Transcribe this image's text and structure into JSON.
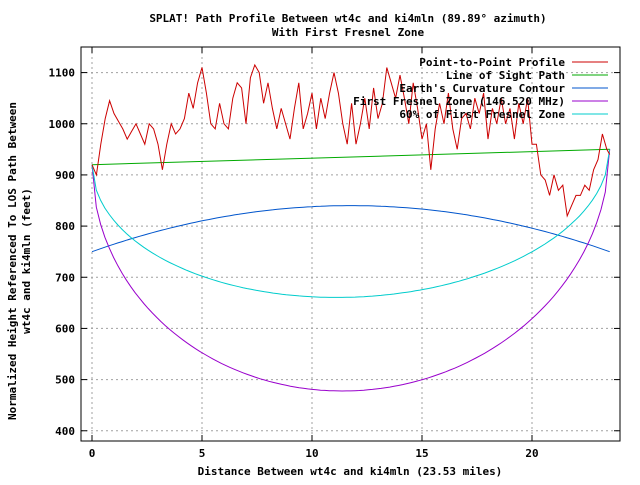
{
  "chart_data": {
    "type": "line",
    "title": "SPLAT! Path Profile Between wt4c and ki4mln (89.89° azimuth)",
    "subtitle": "With First Fresnel Zone",
    "xlabel": "Distance Between wt4c and ki4mln (23.53 miles)",
    "ylabel_line1": "Normalized Height Referenced To LOS Path Between",
    "ylabel_line2": "wt4c and ki4mln (feet)",
    "xlim": [
      -0.5,
      24.0
    ],
    "ylim": [
      380,
      1150
    ],
    "xticks": [
      0,
      5,
      10,
      15,
      20
    ],
    "yticks": [
      400,
      500,
      600,
      700,
      800,
      900,
      1000,
      1100
    ],
    "grid": true,
    "legend_position": "top-right",
    "colors": {
      "profile": "#cc0000",
      "los": "#00aa00",
      "earth": "#0055cc",
      "fresnel": "#9900cc",
      "fresnel60": "#00cccc"
    },
    "series": [
      {
        "key": "profile",
        "name": "Point-to-Point Profile",
        "x": [
          0,
          0.2,
          0.4,
          0.6,
          0.8,
          1.0,
          1.2,
          1.4,
          1.6,
          1.8,
          2.0,
          2.2,
          2.4,
          2.6,
          2.8,
          3.0,
          3.2,
          3.4,
          3.6,
          3.8,
          4.0,
          4.2,
          4.4,
          4.6,
          4.8,
          5.0,
          5.2,
          5.4,
          5.6,
          5.8,
          6.0,
          6.2,
          6.4,
          6.6,
          6.8,
          7.0,
          7.2,
          7.4,
          7.6,
          7.8,
          8.0,
          8.2,
          8.4,
          8.6,
          8.8,
          9.0,
          9.2,
          9.4,
          9.6,
          9.8,
          10.0,
          10.2,
          10.4,
          10.6,
          10.8,
          11.0,
          11.2,
          11.4,
          11.6,
          11.8,
          12.0,
          12.2,
          12.4,
          12.6,
          12.8,
          13.0,
          13.2,
          13.4,
          13.6,
          13.8,
          14.0,
          14.2,
          14.4,
          14.6,
          14.8,
          15.0,
          15.2,
          15.4,
          15.6,
          15.8,
          16.0,
          16.2,
          16.4,
          16.6,
          16.8,
          17.0,
          17.2,
          17.4,
          17.6,
          17.8,
          18.0,
          18.2,
          18.4,
          18.6,
          18.8,
          19.0,
          19.2,
          19.4,
          19.6,
          19.8,
          20.0,
          20.2,
          20.4,
          20.6,
          20.8,
          21.0,
          21.2,
          21.4,
          21.6,
          21.8,
          22.0,
          22.2,
          22.4,
          22.6,
          22.8,
          23.0,
          23.2,
          23.4,
          23.53
        ],
        "y": [
          920,
          900,
          960,
          1010,
          1045,
          1020,
          1005,
          990,
          970,
          985,
          1000,
          980,
          960,
          1000,
          990,
          960,
          910,
          960,
          1000,
          980,
          990,
          1010,
          1060,
          1030,
          1080,
          1110,
          1060,
          1000,
          990,
          1040,
          1000,
          990,
          1050,
          1080,
          1070,
          1000,
          1090,
          1115,
          1100,
          1040,
          1080,
          1030,
          990,
          1030,
          1000,
          970,
          1030,
          1080,
          990,
          1020,
          1060,
          990,
          1050,
          1010,
          1060,
          1100,
          1060,
          1000,
          960,
          1040,
          960,
          1000,
          1050,
          990,
          1070,
          1010,
          1040,
          1110,
          1080,
          1050,
          1095,
          1050,
          1000,
          1080,
          1030,
          970,
          1000,
          910,
          990,
          1040,
          1000,
          1060,
          990,
          950,
          1010,
          1020,
          990,
          1050,
          1020,
          1060,
          970,
          1030,
          1000,
          1050,
          1000,
          1030,
          970,
          1040,
          1000,
          1050,
          960,
          960,
          900,
          890,
          860,
          900,
          870,
          880,
          820,
          840,
          860,
          860,
          880,
          870,
          910,
          930,
          980,
          950,
          940
        ],
        "color": "#cc0000"
      },
      {
        "key": "los",
        "name": "Line of Sight Path",
        "x": [
          0,
          23.53
        ],
        "y": [
          920,
          950
        ],
        "color": "#00aa00"
      },
      {
        "key": "earth",
        "name": "Earth's Curvature Contour",
        "kind": "parabola",
        "x_start": 0,
        "x_end": 23.53,
        "y_ends": 750,
        "y_mid": 840,
        "color": "#0055cc"
      },
      {
        "key": "fresnel",
        "name": "First Fresnel Zone (146.520 MHz)",
        "kind": "ellipse-lower",
        "x_start": 0,
        "x_end": 23.53,
        "y_start": 920,
        "y_end": 950,
        "depth": 457,
        "color": "#9900cc"
      },
      {
        "key": "fresnel60",
        "name": "60% of First Fresnel Zone",
        "kind": "ellipse-lower",
        "x_start": 0,
        "x_end": 23.53,
        "y_start": 920,
        "y_end": 950,
        "depth": 274,
        "color": "#00cccc"
      }
    ]
  }
}
